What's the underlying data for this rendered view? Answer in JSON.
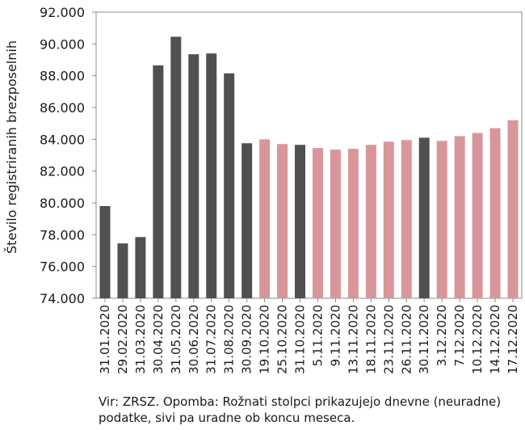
{
  "chart_data": {
    "type": "bar",
    "ylabel": "Število registriranih brezposelnih",
    "ylim": [
      74000,
      92000
    ],
    "yticks": [
      74000,
      76000,
      78000,
      80000,
      82000,
      84000,
      86000,
      88000,
      90000,
      92000
    ],
    "ytick_labels": [
      "74.000",
      "76.000",
      "78.000",
      "80.000",
      "82.000",
      "84.000",
      "86.000",
      "88.000",
      "90.000",
      "92.000"
    ],
    "grid": false,
    "legend": "none",
    "colors": {
      "official": "#505050",
      "daily": "#d9969a"
    },
    "categories": [
      "31.01.2020",
      "29.02.2020",
      "31.03.2020",
      "30.04.2020",
      "31.05.2020",
      "30.06.2020",
      "31.07.2020",
      "31.08.2020",
      "30.09.2020",
      "19.10.2020",
      "25.10.2020",
      "31.10.2020",
      "5.11.2020",
      "9.11.2020",
      "13.11.2020",
      "18.11.2020",
      "23.11.2020",
      "26.11.2020",
      "30.11.2020",
      "3.12.2020",
      "7.12.2020",
      "10.12.2020",
      "14.12.2020",
      "17.12.2020"
    ],
    "values": [
      79800,
      77450,
      77850,
      88650,
      90450,
      89350,
      89400,
      88150,
      83750,
      84000,
      83700,
      83650,
      83450,
      83350,
      83400,
      83650,
      83850,
      83950,
      84100,
      83900,
      84200,
      84400,
      84700,
      85200
    ],
    "kind": [
      "official",
      "official",
      "official",
      "official",
      "official",
      "official",
      "official",
      "official",
      "official",
      "daily",
      "daily",
      "official",
      "daily",
      "daily",
      "daily",
      "daily",
      "daily",
      "daily",
      "official",
      "daily",
      "daily",
      "daily",
      "daily",
      "daily"
    ]
  },
  "source_note": "Vir: ZRSZ. Opomba: Rožnati stolpci prikazujejo dnevne (neuradne) podatke, sivi pa uradne ob koncu meseca."
}
